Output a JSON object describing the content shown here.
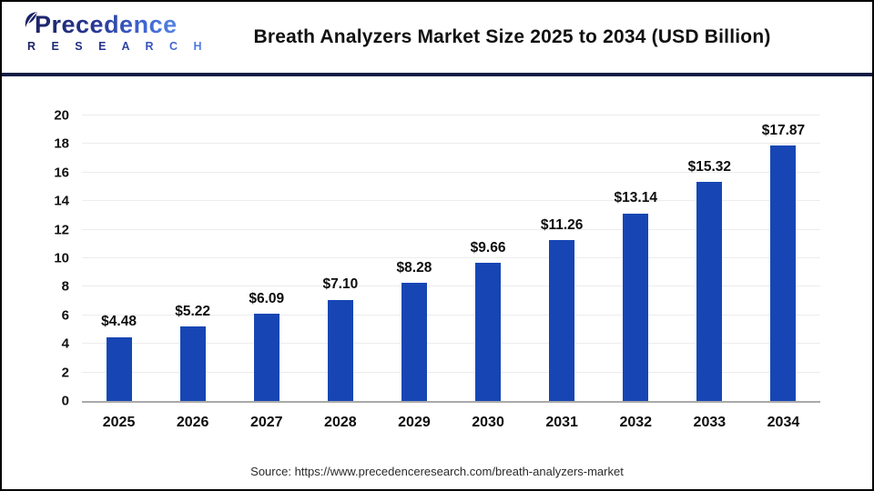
{
  "header": {
    "logo_line1": "Precedence",
    "logo_line2": "R E S E A R C H",
    "title": "Breath Analyzers Market Size 2025 to 2034 (USD Billion)"
  },
  "chart_data": {
    "type": "bar",
    "title": "Breath Analyzers Market Size 2025 to 2034 (USD Billion)",
    "categories": [
      "2025",
      "2026",
      "2027",
      "2028",
      "2029",
      "2030",
      "2031",
      "2032",
      "2033",
      "2034"
    ],
    "values": [
      4.48,
      5.22,
      6.09,
      7.1,
      8.28,
      9.66,
      11.26,
      13.14,
      15.32,
      17.87
    ],
    "value_labels": [
      "$4.48",
      "$5.22",
      "$6.09",
      "$7.10",
      "$8.28",
      "$9.66",
      "$11.26",
      "$13.14",
      "$15.32",
      "$17.87"
    ],
    "xlabel": "",
    "ylabel": "",
    "ylim": [
      0,
      20
    ],
    "yticks": [
      0,
      2,
      4,
      6,
      8,
      10,
      12,
      14,
      16,
      18,
      20
    ],
    "grid": true,
    "legend": "none",
    "bar_color": "#1746b4"
  },
  "footer": {
    "source": "Source: https://www.precedenceresearch.com/breath-analyzers-market"
  },
  "colors": {
    "bar": "#1746b4",
    "divider": "#101c44",
    "gridline": "#ececec",
    "baseline": "#a9a9a9",
    "logo_navy": "#1b2468",
    "logo_blue": "#4a7ce0"
  }
}
